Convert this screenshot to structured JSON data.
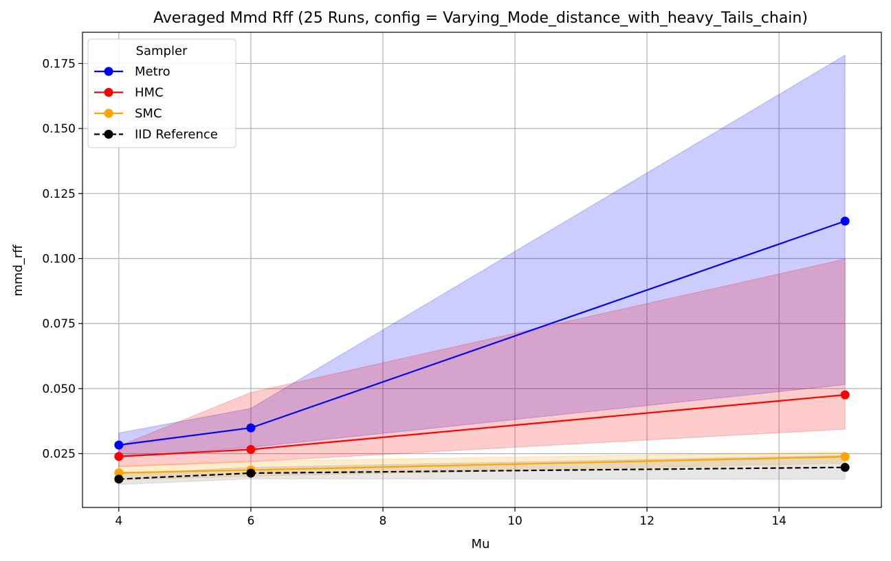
{
  "chart_data": {
    "type": "line",
    "title": "Averaged Mmd Rff (25 Runs, config = Varying_Mode_distance_with_heavy_Tails_chain)",
    "xlabel": "Mu",
    "ylabel": "mmd_rff",
    "x": [
      4,
      6,
      15
    ],
    "xlim": [
      3.45,
      15.55
    ],
    "ylim": [
      0.0043,
      0.187
    ],
    "xticks": [
      4,
      6,
      8,
      10,
      12,
      14
    ],
    "xtick_labels": [
      "4",
      "6",
      "8",
      "10",
      "12",
      "14"
    ],
    "yticks": [
      0.025,
      0.05,
      0.075,
      0.1,
      0.125,
      0.15,
      0.175
    ],
    "ytick_labels": [
      "0.025",
      "0.050",
      "0.075",
      "0.100",
      "0.125",
      "0.150",
      "0.175"
    ],
    "grid": true,
    "legend": {
      "title": "Sampler",
      "position": "upper-left"
    },
    "series": [
      {
        "name": "Metro",
        "color": "#0000ff",
        "band_color": "#0000ff",
        "band_opacity": 0.2,
        "line_style": "solid",
        "values": [
          0.0283,
          0.0349,
          0.1144
        ],
        "lower": [
          0.0237,
          0.0274,
          0.0515
        ],
        "upper": [
          0.0329,
          0.0424,
          0.1782
        ]
      },
      {
        "name": "HMC",
        "color": "#ff0000",
        "band_color": "#ff0000",
        "band_opacity": 0.2,
        "line_style": "solid",
        "values": [
          0.0239,
          0.0266,
          0.0476
        ],
        "lower": [
          0.0199,
          0.0219,
          0.0344
        ],
        "upper": [
          0.0279,
          0.0485,
          0.0998
        ]
      },
      {
        "name": "SMC",
        "color": "#ffa500",
        "band_color": "#ffa500",
        "band_opacity": 0.2,
        "line_style": "solid",
        "values": [
          0.0176,
          0.0187,
          0.0238
        ],
        "lower": [
          0.0149,
          0.0163,
          0.0213
        ],
        "upper": [
          0.0203,
          0.0221,
          0.0256
        ]
      },
      {
        "name": "IID Reference",
        "color": "#000000",
        "marker_color": "#000000",
        "band_color": "#808080",
        "band_opacity": 0.2,
        "line_style": "dashed",
        "values": [
          0.0152,
          0.0175,
          0.0197
        ],
        "lower": [
          0.0131,
          0.0153,
          0.0151
        ],
        "upper": [
          0.0173,
          0.0197,
          0.0243
        ]
      }
    ]
  }
}
